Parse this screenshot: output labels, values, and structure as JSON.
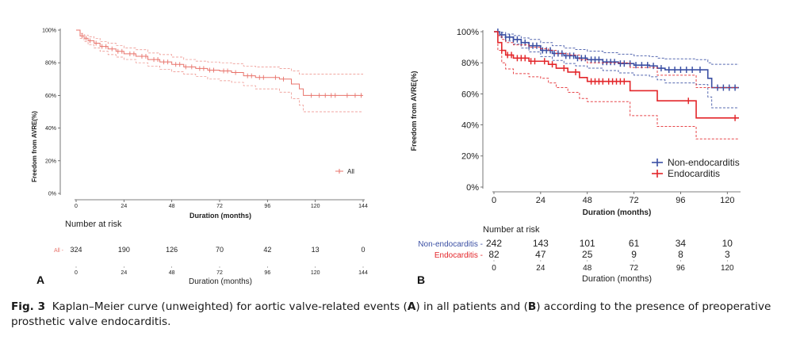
{
  "caption": {
    "label": "Fig. 3",
    "parts": [
      "Kaplan–Meier curve (unweighted) for aortic valve-related events (",
      "A",
      ") in all patients and (",
      "B",
      ") according to the presence of preoperative prosthetic valve endocarditis."
    ]
  },
  "colors": {
    "all": "#e8736b",
    "non_endocarditis": "#3a4fa3",
    "endocarditis": "#e3262a"
  },
  "chart_data": [
    {
      "panel": "A",
      "type": "line",
      "subtype": "kaplan-meier",
      "xlabel": "Duration (months)",
      "ylabel": "Freedom from AVRE(%)",
      "xlim": [
        0,
        144
      ],
      "ylim": [
        0,
        100
      ],
      "xticks": [
        0,
        24,
        48,
        72,
        96,
        120,
        144
      ],
      "yticks": [
        0,
        20,
        40,
        60,
        80,
        100
      ],
      "ytick_labels": [
        "0%",
        "20%",
        "40%",
        "60%",
        "80%",
        "100%"
      ],
      "legend": {
        "position": "bottom-right",
        "entries": [
          "All"
        ]
      },
      "series": [
        {
          "name": "All",
          "x": [
            0,
            2,
            4,
            6,
            9,
            12,
            16,
            20,
            24,
            30,
            36,
            42,
            48,
            54,
            60,
            66,
            72,
            78,
            84,
            90,
            96,
            102,
            108,
            112,
            114,
            116,
            120,
            132,
            144
          ],
          "y": [
            100,
            96.5,
            95,
            93.5,
            92,
            90,
            88.5,
            87,
            85.5,
            84,
            82,
            80.5,
            79,
            77.5,
            76.5,
            75.5,
            75,
            74,
            72,
            71,
            71,
            70,
            67,
            64,
            60,
            60,
            60,
            60,
            60
          ],
          "lower": [
            100,
            95,
            93,
            91,
            89,
            87,
            85,
            83.5,
            82,
            80,
            78,
            76,
            74.5,
            73,
            71.5,
            70,
            69,
            68,
            66,
            64,
            64,
            62,
            58,
            54,
            50,
            50,
            50,
            50,
            50
          ],
          "upper": [
            100,
            98,
            97,
            96,
            95,
            93,
            92,
            90.5,
            89,
            88,
            86,
            85,
            83.5,
            82,
            81,
            80.5,
            80,
            79.5,
            78,
            77.5,
            77.5,
            76.5,
            75,
            73,
            73,
            73,
            73,
            73,
            73
          ],
          "censor_x": [
            3,
            5,
            7,
            10,
            13,
            15,
            18,
            21,
            23,
            27,
            29,
            33,
            35,
            39,
            41,
            44,
            46,
            50,
            52,
            55,
            58,
            62,
            64,
            67,
            69,
            74,
            76,
            80,
            86,
            88,
            92,
            94,
            100,
            104,
            118,
            122,
            125,
            128,
            130,
            136,
            140,
            143
          ]
        }
      ],
      "risk_table": {
        "title": "Number at risk",
        "rows": [
          {
            "label": "All",
            "values": [
              324,
              190,
              126,
              70,
              42,
              13,
              0
            ]
          }
        ],
        "times": [
          0,
          24,
          48,
          72,
          96,
          120,
          144
        ],
        "xlabel": "Duration (months)"
      }
    },
    {
      "panel": "B",
      "type": "line",
      "subtype": "kaplan-meier",
      "xlabel": "Duration (months)",
      "ylabel": "Freedom from AVRE(%)",
      "xlim": [
        0,
        126
      ],
      "ylim": [
        0,
        100
      ],
      "xticks": [
        0,
        24,
        48,
        72,
        96,
        120
      ],
      "yticks": [
        0,
        20,
        40,
        60,
        80,
        100
      ],
      "ytick_labels": [
        "0%",
        "20%",
        "40%",
        "60%",
        "80%",
        "100%"
      ],
      "legend": {
        "position": "bottom-right",
        "entries": [
          "Non-endocarditis",
          "Endocarditis"
        ]
      },
      "series": [
        {
          "name": "Non-endocarditis",
          "x": [
            0,
            3,
            6,
            10,
            14,
            18,
            24,
            30,
            36,
            42,
            48,
            56,
            64,
            72,
            80,
            84,
            88,
            104,
            110,
            112,
            126
          ],
          "y": [
            100,
            98,
            96.5,
            95,
            93,
            91,
            88,
            86,
            84.5,
            83,
            82,
            80.5,
            79.5,
            78.5,
            78,
            76.5,
            75.5,
            75.5,
            70,
            64,
            64
          ],
          "lower": [
            100,
            96.5,
            94,
            92,
            89.5,
            87,
            84,
            81.5,
            79.5,
            78,
            76.5,
            75,
            73.5,
            72,
            71,
            69,
            67,
            66,
            58,
            51,
            51
          ],
          "upper": [
            100,
            99.5,
            98.5,
            97.5,
            96,
            95,
            93,
            91,
            89.5,
            88.5,
            87.5,
            86.5,
            85.5,
            84.5,
            84,
            83,
            82.5,
            82,
            80,
            79,
            79
          ],
          "censor_x": [
            2,
            4,
            6,
            8,
            10,
            12,
            14,
            16,
            18,
            20,
            22,
            25,
            27,
            29,
            31,
            33,
            35,
            37,
            39,
            41,
            43,
            45,
            47,
            50,
            52,
            54,
            56,
            58,
            60,
            62,
            65,
            67,
            70,
            73,
            76,
            79,
            82,
            86,
            90,
            93,
            96,
            99,
            102,
            106,
            115,
            118,
            121,
            124
          ]
        },
        {
          "name": "Endocarditis",
          "x": [
            0,
            2,
            4,
            6,
            10,
            18,
            24,
            28,
            32,
            38,
            44,
            48,
            58,
            66,
            70,
            72,
            84,
            102,
            104,
            126
          ],
          "y": [
            100,
            93,
            88,
            85,
            83,
            81,
            81,
            79,
            76.5,
            74,
            70.5,
            68,
            68,
            68,
            62,
            62,
            55.5,
            55.5,
            44.5,
            44.5
          ],
          "lower": [
            100,
            88,
            80,
            76,
            73,
            71,
            70,
            67,
            64,
            61,
            57,
            55,
            55,
            55,
            46,
            46,
            39,
            39,
            31,
            31
          ],
          "upper": [
            100,
            97.5,
            95,
            93,
            91.5,
            90,
            89,
            88,
            86,
            85,
            82,
            80,
            80,
            80,
            77,
            77,
            72,
            72,
            64,
            64
          ],
          "censor_x": [
            4,
            7,
            9,
            12,
            14,
            16,
            19,
            21,
            26,
            30,
            36,
            42,
            50,
            52,
            54,
            56,
            59,
            61,
            63,
            65,
            67,
            100,
            124
          ]
        }
      ],
      "risk_table": {
        "title": "Number at risk",
        "rows": [
          {
            "label": "Non-endocarditis",
            "values": [
              242,
              143,
              101,
              61,
              34,
              10
            ]
          },
          {
            "label": "Endocarditis",
            "values": [
              82,
              47,
              25,
              9,
              8,
              3
            ]
          }
        ],
        "times": [
          0,
          24,
          48,
          72,
          96,
          120
        ],
        "xlabel": "Duration (months)"
      }
    }
  ]
}
